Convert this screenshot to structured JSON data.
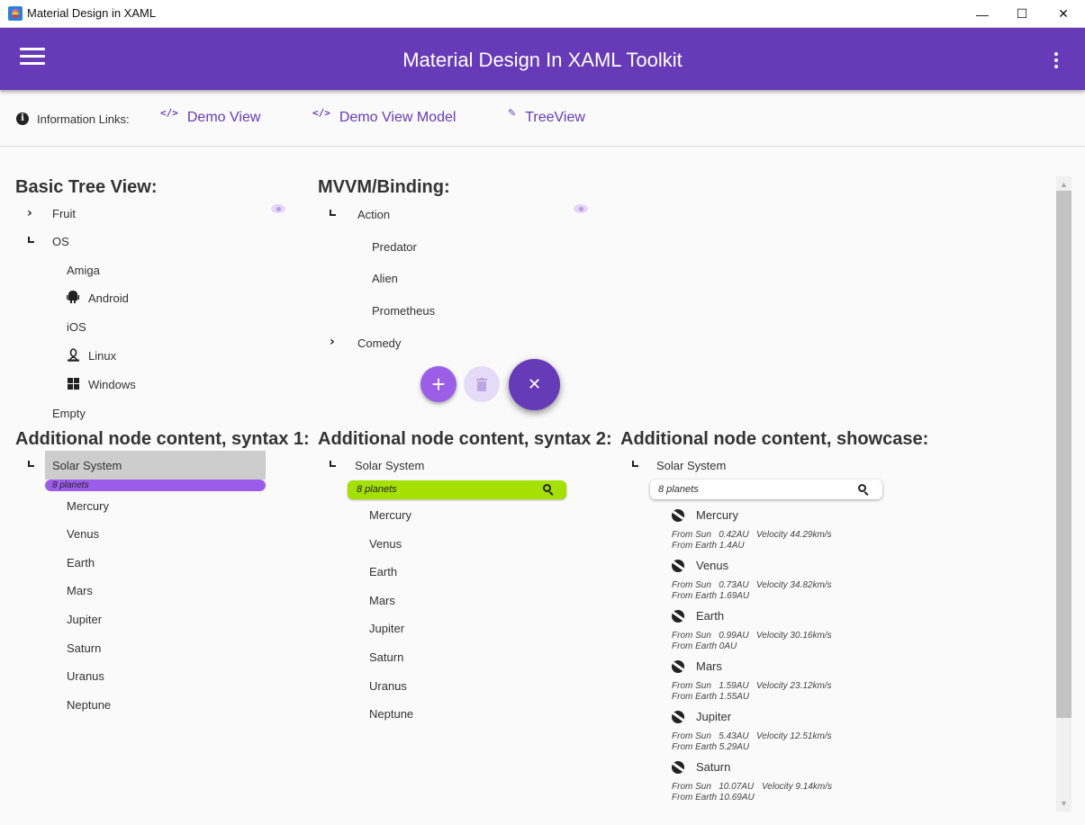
{
  "window": {
    "title": "Material Design in XAML",
    "controls": {
      "minimize": "—",
      "maximize": "☐",
      "close": "✕"
    }
  },
  "header": {
    "title": "Material Design In XAML Toolkit",
    "menu_icon": "hamburger-menu-icon",
    "more_icon": "dots-vertical-icon"
  },
  "info": {
    "label": "Information Links:",
    "links": [
      {
        "label": "Demo View",
        "icon": "code-tags-icon"
      },
      {
        "label": "Demo View Model",
        "icon": "code-tags-icon"
      },
      {
        "label": "TreeView",
        "icon": "pencil-icon"
      }
    ]
  },
  "basic_tree": {
    "heading": "Basic Tree View:",
    "fruit": "Fruit",
    "os": "OS",
    "os_children": [
      "Amiga",
      "Android",
      "iOS",
      "Linux",
      "Windows"
    ],
    "empty": "Empty"
  },
  "mvvm": {
    "heading": "MVVM/Binding:",
    "action": "Action",
    "action_children": [
      "Predator",
      "Alien",
      "Prometheus"
    ],
    "comedy": "Comedy"
  },
  "fabs": {
    "add": "+",
    "delete": "🗑",
    "close": "✕"
  },
  "syntax1": {
    "heading": "Additional node content, syntax 1:",
    "root": "Solar System",
    "badge": "8 planets",
    "planets": [
      "Mercury",
      "Venus",
      "Earth",
      "Mars",
      "Jupiter",
      "Saturn",
      "Uranus",
      "Neptune"
    ]
  },
  "syntax2": {
    "heading": "Additional node content, syntax 2:",
    "root": "Solar System",
    "badge": "8 planets",
    "planets": [
      "Mercury",
      "Venus",
      "Earth",
      "Mars",
      "Jupiter",
      "Saturn",
      "Uranus",
      "Neptune"
    ]
  },
  "showcase": {
    "heading": "Additional node content, showcase:",
    "root": "Solar System",
    "badge": "8 planets",
    "planets": [
      {
        "name": "Mercury",
        "from_sun": "From Sun   0.42AU",
        "velocity": "Velocity 44.29km/s",
        "from_earth": "From Earth 1.4AU"
      },
      {
        "name": "Venus",
        "from_sun": "From Sun   0.73AU",
        "velocity": "Velocity 34.82km/s",
        "from_earth": "From Earth 1.69AU"
      },
      {
        "name": "Earth",
        "from_sun": "From Sun   0.99AU",
        "velocity": "Velocity 30.16km/s",
        "from_earth": "From Earth 0AU"
      },
      {
        "name": "Mars",
        "from_sun": "From Sun   1.59AU",
        "velocity": "Velocity 23.12km/s",
        "from_earth": "From Earth 1.55AU"
      },
      {
        "name": "Jupiter",
        "from_sun": "From Sun   5.43AU",
        "velocity": "Velocity 12.51km/s",
        "from_earth": "From Earth 5.29AU"
      },
      {
        "name": "Saturn",
        "from_sun": "From Sun   10.07AU",
        "velocity": "Velocity 9.14km/s",
        "from_earth": "From Earth 10.69AU"
      }
    ]
  },
  "colors": {
    "primary": "#673ab7",
    "fab_light": "#9c5ee6",
    "badge_purple": "#9b5de9",
    "badge_lime": "#a5e002"
  }
}
